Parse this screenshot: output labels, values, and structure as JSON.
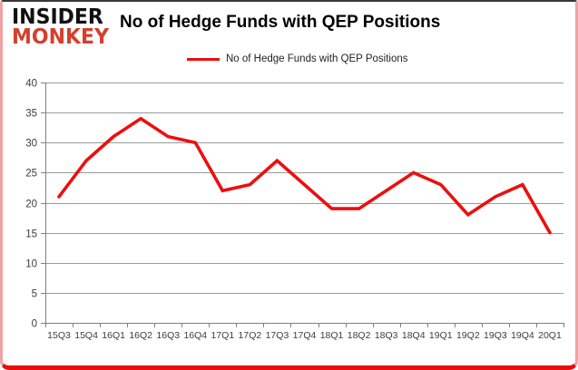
{
  "logo": {
    "line1": "INSIDER",
    "line2": "MONKEY"
  },
  "title": "No of Hedge Funds with QEP Positions",
  "legend": {
    "label": "No of Hedge Funds with QEP Positions"
  },
  "colors": {
    "line": "#ec0f0f",
    "grid": "#9b9b9b",
    "axis": "#808080",
    "tick_text": "#3d3d3d",
    "logo_black": "#111111",
    "logo_red": "#d4402e",
    "frame_red": "#ea0b0b"
  },
  "chart_data": {
    "type": "line",
    "categories": [
      "15Q3",
      "15Q4",
      "16Q1",
      "16Q2",
      "16Q3",
      "16Q4",
      "17Q1",
      "17Q2",
      "17Q3",
      "17Q4",
      "18Q1",
      "18Q2",
      "18Q3",
      "18Q4",
      "19Q1",
      "19Q2",
      "19Q3",
      "19Q4",
      "20Q1"
    ],
    "values": [
      21,
      27,
      31,
      34,
      31,
      30,
      22,
      23,
      27,
      23,
      19,
      19,
      22,
      25,
      23,
      18,
      21,
      23,
      15
    ],
    "series_name": "No of Hedge Funds with QEP Positions",
    "title": "No of Hedge Funds with QEP Positions",
    "xlabel": "",
    "ylabel": "",
    "ylim": [
      0,
      40
    ],
    "ytick_step": 5,
    "yticks": [
      0,
      5,
      10,
      15,
      20,
      25,
      30,
      35,
      40
    ],
    "grid": true,
    "legend_position": "top"
  }
}
